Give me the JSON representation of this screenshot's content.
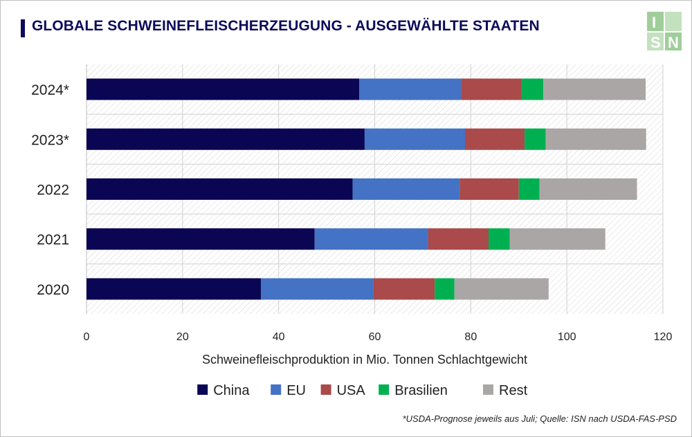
{
  "title": "GLOBALE SCHWEINEFLEISCHERZEUGUNG - AUSGEWÄHLTE STAATEN",
  "footnote": "*USDA-Prognose jeweils aus Juli; Quelle: ISN nach USDA-FAS-PSD",
  "logo": {
    "letters": [
      "I",
      "S",
      "N"
    ],
    "color": "#8fc58a"
  },
  "chart_data": {
    "type": "bar",
    "orientation": "horizontal",
    "stacked": true,
    "categories": [
      "2024*",
      "2023*",
      "2022",
      "2021",
      "2020"
    ],
    "series": [
      {
        "name": "China",
        "color": "#0b0654",
        "values": [
          56.8,
          57.9,
          55.4,
          47.5,
          36.3
        ]
      },
      {
        "name": "EU",
        "color": "#4472c4",
        "values": [
          21.2,
          20.9,
          22.3,
          23.6,
          23.4
        ]
      },
      {
        "name": "USA",
        "color": "#aa4a4a",
        "values": [
          12.6,
          12.4,
          12.3,
          12.6,
          12.8
        ]
      },
      {
        "name": "Brasilien",
        "color": "#00b050",
        "values": [
          4.5,
          4.4,
          4.3,
          4.4,
          4.1
        ]
      },
      {
        "name": "Rest",
        "color": "#aaa6a6",
        "values": [
          21.3,
          20.9,
          20.3,
          19.9,
          19.6
        ]
      }
    ],
    "xlabel": "Schweinefleischproduktion in Mio. Tonnen Schlachtgewicht",
    "ylabel": "",
    "xlim": [
      0,
      120
    ],
    "xticks": [
      0,
      20,
      40,
      60,
      80,
      100,
      120
    ],
    "grid": true,
    "legend": "bottom"
  }
}
